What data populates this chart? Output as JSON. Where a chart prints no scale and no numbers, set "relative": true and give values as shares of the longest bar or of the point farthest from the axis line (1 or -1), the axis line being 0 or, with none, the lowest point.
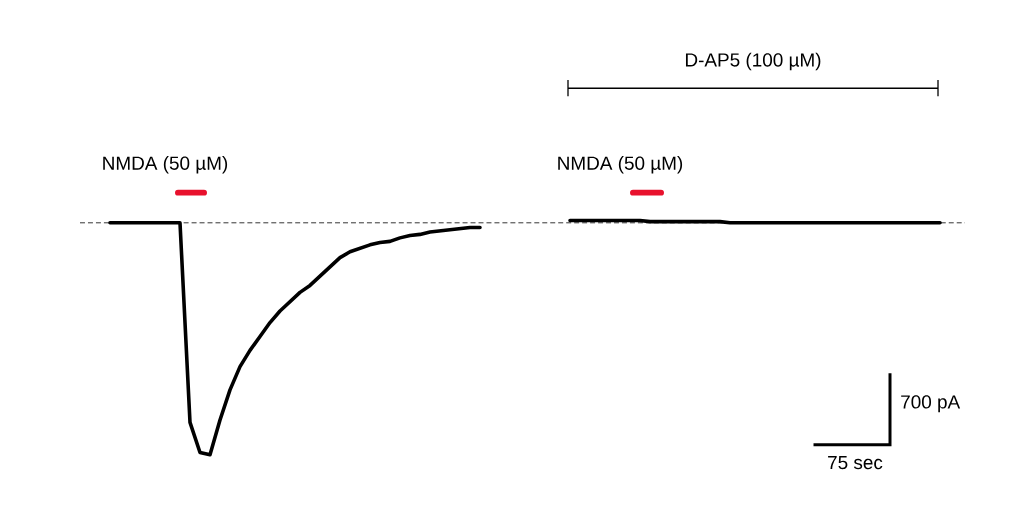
{
  "chart_data": {
    "type": "line",
    "relative": true,
    "categories": [
      null,
      null,
      null,
      null,
      null,
      null,
      null,
      null,
      null,
      null,
      null,
      null,
      null,
      null,
      null,
      null,
      null,
      null,
      null,
      null,
      null,
      null,
      null,
      null,
      null,
      null,
      null,
      null,
      null,
      null,
      null,
      null,
      null,
      null,
      null,
      null,
      null,
      null,
      null,
      null,
      null,
      null,
      null,
      null,
      null,
      null,
      null,
      null,
      null,
      null,
      null,
      null,
      null,
      null,
      null,
      null,
      null,
      null,
      null,
      null,
      null,
      null,
      null,
      null,
      null,
      null,
      null,
      null,
      null,
      null,
      null,
      null,
      null,
      null,
      null,
      null,
      null,
      null,
      null,
      null,
      null,
      null,
      null,
      null
    ],
    "series": [
      {
        "color": "#000000",
        "values": [
          0,
          0,
          0,
          0,
          0,
          0,
          0,
          0,
          -0.86,
          -0.99,
          -1,
          -0.85,
          -0.72,
          -0.62,
          -0.55,
          -0.49,
          -0.43,
          -0.38,
          -0.34,
          -0.3,
          -0.27,
          -0.23,
          -0.19,
          -0.15,
          -0.125,
          -0.11,
          -0.095,
          -0.085,
          -0.08,
          -0.065,
          -0.055,
          -0.05,
          -0.04,
          -0.035,
          -0.03,
          -0.025,
          -0.02,
          -0.02,
          null,
          null,
          null,
          null,
          null,
          null,
          null,
          null,
          null,
          null,
          null,
          null,
          null,
          null,
          null,
          null,
          null,
          null,
          null,
          null,
          null,
          null,
          null,
          null,
          null,
          null,
          null,
          null,
          null,
          null,
          null,
          null,
          null,
          null,
          null,
          null,
          null,
          null,
          null,
          null,
          null,
          null,
          null,
          null,
          null,
          null
        ]
      },
      {
        "color": "#000000",
        "values": [
          null,
          null,
          null,
          null,
          null,
          null,
          null,
          null,
          null,
          null,
          null,
          null,
          null,
          null,
          null,
          null,
          null,
          null,
          null,
          null,
          null,
          null,
          null,
          null,
          null,
          null,
          null,
          null,
          null,
          null,
          null,
          null,
          null,
          null,
          null,
          null,
          null,
          null,
          null,
          null,
          null,
          null,
          null,
          null,
          null,
          null,
          0.01,
          0.01,
          0.01,
          0.01,
          0.01,
          0.01,
          0.01,
          0.01,
          0.005,
          0.005,
          0.005,
          0.005,
          0.005,
          0.005,
          0.005,
          0.005,
          0,
          0,
          0,
          0,
          0,
          0,
          0,
          0,
          0,
          0,
          0,
          0,
          0,
          0,
          0,
          0,
          0,
          0,
          0,
          0,
          0,
          0
        ]
      }
    ],
    "ref_lines": [
      {
        "axis": "y",
        "value": 0,
        "line_style": "dashed",
        "color": "#000000"
      }
    ],
    "annotations": [
      "NMDA (50 µM)",
      "NMDA (50 µM)",
      "D-AP5 (100 µM)",
      "700 pA",
      "75 sec"
    ],
    "line_style": "solid"
  }
}
